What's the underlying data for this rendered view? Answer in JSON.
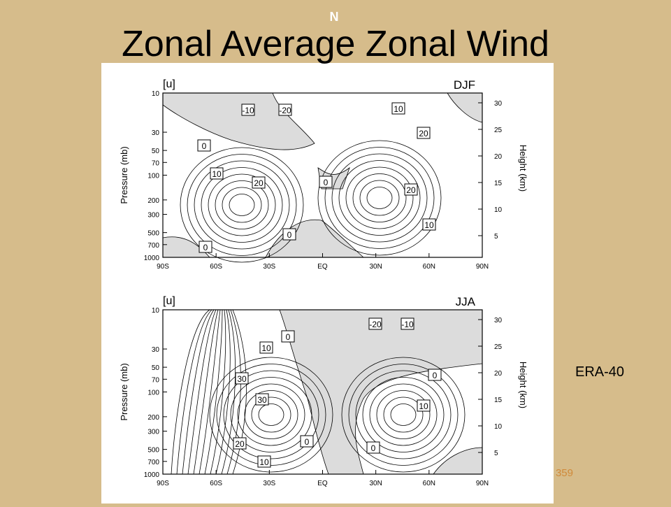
{
  "slide": {
    "mark": "N",
    "title": "Zonal Average Zonal Wind",
    "source": "ERA-40",
    "page_number": "359"
  },
  "axes": {
    "y_label": "Pressure (mb)",
    "y2_label": "Height (km)",
    "pressure_ticks": [
      10,
      30,
      50,
      70,
      100,
      200,
      300,
      500,
      700,
      1000
    ],
    "height_ticks": [
      30,
      25,
      20,
      15,
      10,
      5
    ],
    "latitude_ticks": [
      "90S",
      "60S",
      "30S",
      "EQ",
      "30N",
      "60N",
      "90N"
    ]
  },
  "panels": [
    {
      "variable": "[u]",
      "season": "DJF",
      "contour_labels": [
        "-10",
        "-20",
        "10",
        "0",
        "20",
        "10",
        "20",
        "0",
        "20",
        "0",
        "10",
        "0"
      ]
    },
    {
      "variable": "[u]",
      "season": "JJA",
      "contour_labels": [
        "0",
        "-20",
        "-10",
        "10",
        "30",
        "0",
        "30",
        "10",
        "0",
        "20",
        "0",
        "10"
      ]
    }
  ]
}
